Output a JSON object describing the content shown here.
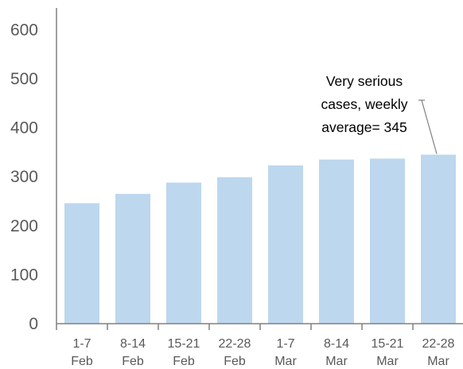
{
  "chart_data": {
    "type": "bar",
    "categories": [
      [
        "1-7",
        "Feb"
      ],
      [
        "8-14",
        "Feb"
      ],
      [
        "15-21",
        "Feb"
      ],
      [
        "22-28",
        "Feb"
      ],
      [
        "1-7",
        "Mar"
      ],
      [
        "8-14",
        "Mar"
      ],
      [
        "15-21",
        "Mar"
      ],
      [
        "22-28",
        "Mar"
      ]
    ],
    "values": [
      246,
      265,
      288,
      299,
      323,
      335,
      337,
      345
    ],
    "ylim": [
      0,
      650
    ],
    "yticks": [
      0,
      100,
      200,
      300,
      400,
      500,
      600
    ],
    "grid": false,
    "bar_color": "#bdd7ee",
    "axis_color": "#808080",
    "annotation": {
      "lines": [
        "Very serious",
        "cases, weekly",
        "average= 345"
      ],
      "target_index": 7
    }
  }
}
